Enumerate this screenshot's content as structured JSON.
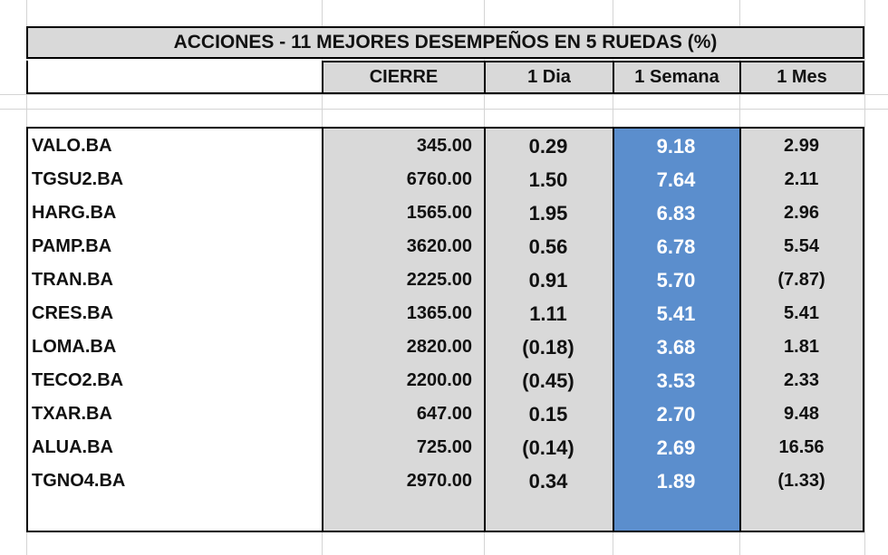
{
  "title": "ACCIONES   - 11  MEJORES DESEMPEÑOS EN 5 RUEDAS (%)",
  "headers": {
    "cierre": "CIERRE",
    "dia": "1 Dia",
    "semana": "1 Semana",
    "mes": "1 Mes"
  },
  "colors": {
    "header_bg": "#d9d9d9",
    "highlight_bg": "#5b8ecd",
    "highlight_text": "#ffffff"
  },
  "rows": [
    {
      "ticker": "VALO.BA",
      "cierre": "345.00",
      "dia": "0.29",
      "semana": "9.18",
      "mes": "2.99"
    },
    {
      "ticker": "TGSU2.BA",
      "cierre": "6760.00",
      "dia": "1.50",
      "semana": "7.64",
      "mes": "2.11"
    },
    {
      "ticker": "HARG.BA",
      "cierre": "1565.00",
      "dia": "1.95",
      "semana": "6.83",
      "mes": "2.96"
    },
    {
      "ticker": "PAMP.BA",
      "cierre": "3620.00",
      "dia": "0.56",
      "semana": "6.78",
      "mes": "5.54"
    },
    {
      "ticker": "TRAN.BA",
      "cierre": "2225.00",
      "dia": "0.91",
      "semana": "5.70",
      "mes": "(7.87)"
    },
    {
      "ticker": "CRES.BA",
      "cierre": "1365.00",
      "dia": "1.11",
      "semana": "5.41",
      "mes": "5.41"
    },
    {
      "ticker": "LOMA.BA",
      "cierre": "2820.00",
      "dia": "(0.18)",
      "semana": "3.68",
      "mes": "1.81"
    },
    {
      "ticker": "TECO2.BA",
      "cierre": "2200.00",
      "dia": "(0.45)",
      "semana": "3.53",
      "mes": "2.33"
    },
    {
      "ticker": "TXAR.BA",
      "cierre": "647.00",
      "dia": "0.15",
      "semana": "2.70",
      "mes": "9.48"
    },
    {
      "ticker": "ALUA.BA",
      "cierre": "725.00",
      "dia": "(0.14)",
      "semana": "2.69",
      "mes": "16.56"
    },
    {
      "ticker": "TGNO4.BA",
      "cierre": "2970.00",
      "dia": "0.34",
      "semana": "1.89",
      "mes": "(1.33)"
    }
  ]
}
